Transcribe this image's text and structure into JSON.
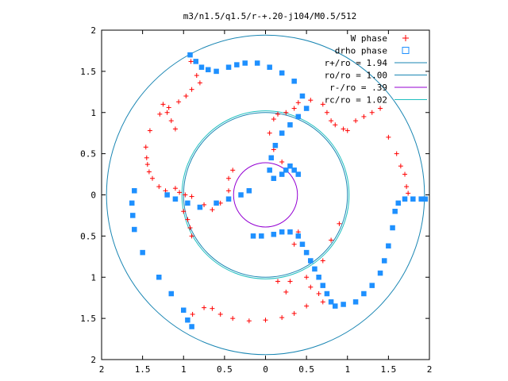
{
  "chart_data": {
    "type": "scatter",
    "title": "m3/n1.5/q1.5/r-+.20-j104/M0.5/512",
    "xlim": [
      -2,
      2
    ],
    "ylim": [
      -2,
      2
    ],
    "x_ticks": [
      -2,
      -1.5,
      -1,
      -0.5,
      0,
      0.5,
      1,
      1.5,
      2
    ],
    "y_ticks": [
      -2,
      -1.5,
      -1,
      -0.5,
      0,
      0.5,
      1,
      1.5,
      2
    ],
    "x_tick_labels": [
      "2",
      "1.5",
      "1",
      "0.5",
      "0",
      "0.5",
      "1",
      "1.5",
      "2"
    ],
    "y_tick_labels": [
      "2",
      "1.5",
      "1",
      "0.5",
      "0",
      "0.5",
      "1",
      "1.5",
      "2"
    ],
    "grid": false,
    "legend_position": "top-right",
    "circles": [
      {
        "label": "r+/ro = 1.94",
        "radius": 1.94,
        "color": "#1a86b3"
      },
      {
        "label": "ro/ro = 1.00",
        "radius": 1.0,
        "color": "#1a86b3"
      },
      {
        "label": "r-/ro =  .39",
        "radius": 0.39,
        "color": "#9400d3"
      },
      {
        "label": "rc/ro = 1.02",
        "radius": 1.02,
        "color": "#20c0c0"
      }
    ],
    "series": [
      {
        "name": "W phase",
        "marker": "plus",
        "color": "#ff0000",
        "points": [
          [
            -0.91,
            1.62
          ],
          [
            -0.84,
            1.45
          ],
          [
            -0.8,
            1.36
          ],
          [
            -0.9,
            1.28
          ],
          [
            -0.97,
            1.2
          ],
          [
            -1.06,
            1.13
          ],
          [
            -1.18,
            1.06
          ],
          [
            -1.29,
            0.98
          ],
          [
            -1.41,
            0.78
          ],
          [
            -1.46,
            0.58
          ],
          [
            -1.45,
            0.45
          ],
          [
            -1.44,
            0.37
          ],
          [
            -1.42,
            0.28
          ],
          [
            -1.38,
            0.2
          ],
          [
            -1.3,
            0.1
          ],
          [
            -1.22,
            0.05
          ],
          [
            -1.1,
            0.08
          ],
          [
            -1.05,
            0.03
          ],
          [
            -0.98,
            0.0
          ],
          [
            -0.9,
            -0.02
          ],
          [
            -0.75,
            -0.12
          ],
          [
            -0.65,
            -0.18
          ],
          [
            -0.55,
            -0.1
          ],
          [
            -0.45,
            0.05
          ],
          [
            -0.4,
            0.3
          ],
          [
            -0.45,
            0.2
          ],
          [
            -1.0,
            -0.2
          ],
          [
            -0.95,
            -0.3
          ],
          [
            -0.92,
            -0.4
          ],
          [
            -0.9,
            -0.5
          ],
          [
            -0.89,
            -1.45
          ],
          [
            -0.75,
            -1.37
          ],
          [
            -0.65,
            -1.38
          ],
          [
            -0.55,
            -1.45
          ],
          [
            -0.4,
            -1.5
          ],
          [
            -0.2,
            -1.53
          ],
          [
            0.0,
            -1.52
          ],
          [
            0.2,
            -1.49
          ],
          [
            0.35,
            -1.44
          ],
          [
            0.5,
            -1.35
          ],
          [
            0.25,
            -1.18
          ],
          [
            0.5,
            -1.0
          ],
          [
            0.6,
            -0.9
          ],
          [
            0.7,
            -0.8
          ],
          [
            0.35,
            -0.6
          ],
          [
            0.4,
            -0.45
          ],
          [
            0.8,
            -0.55
          ],
          [
            0.9,
            -0.35
          ],
          [
            0.15,
            -1.05
          ],
          [
            0.3,
            -1.05
          ],
          [
            0.55,
            -1.12
          ],
          [
            0.65,
            -1.2
          ],
          [
            0.7,
            -1.3
          ],
          [
            0.2,
            0.4
          ],
          [
            0.1,
            0.55
          ],
          [
            0.05,
            0.75
          ],
          [
            0.1,
            0.92
          ],
          [
            0.15,
            0.98
          ],
          [
            0.25,
            1.0
          ],
          [
            0.35,
            1.05
          ],
          [
            0.4,
            1.12
          ],
          [
            0.55,
            1.15
          ],
          [
            0.7,
            1.1
          ],
          [
            0.75,
            1.0
          ],
          [
            0.8,
            0.9
          ],
          [
            0.85,
            0.85
          ],
          [
            0.95,
            0.8
          ],
          [
            1.0,
            0.78
          ],
          [
            1.1,
            0.9
          ],
          [
            1.2,
            0.95
          ],
          [
            1.3,
            1.0
          ],
          [
            1.4,
            1.05
          ],
          [
            1.5,
            0.7
          ],
          [
            1.6,
            0.5
          ],
          [
            1.65,
            0.35
          ],
          [
            1.7,
            0.25
          ],
          [
            1.72,
            0.1
          ],
          [
            1.74,
            0.02
          ],
          [
            -1.25,
            1.1
          ],
          [
            -1.2,
            1.0
          ],
          [
            -1.15,
            0.9
          ],
          [
            -1.1,
            0.8
          ]
        ]
      },
      {
        "name": "drho phase",
        "marker": "square",
        "color": "#1e90ff",
        "points": [
          [
            -0.92,
            1.7
          ],
          [
            -0.85,
            1.62
          ],
          [
            -0.78,
            1.55
          ],
          [
            -0.7,
            1.52
          ],
          [
            -0.6,
            1.5
          ],
          [
            -0.45,
            1.55
          ],
          [
            -0.35,
            1.58
          ],
          [
            -0.25,
            1.6
          ],
          [
            -0.1,
            1.6
          ],
          [
            0.05,
            1.55
          ],
          [
            0.2,
            1.48
          ],
          [
            0.35,
            1.38
          ],
          [
            0.45,
            1.2
          ],
          [
            0.5,
            1.05
          ],
          [
            0.4,
            0.95
          ],
          [
            0.3,
            0.85
          ],
          [
            0.2,
            0.75
          ],
          [
            0.12,
            0.6
          ],
          [
            0.07,
            0.45
          ],
          [
            0.05,
            0.3
          ],
          [
            0.1,
            0.2
          ],
          [
            0.2,
            0.25
          ],
          [
            0.25,
            0.3
          ],
          [
            0.3,
            0.35
          ],
          [
            0.35,
            0.3
          ],
          [
            0.4,
            0.25
          ],
          [
            -1.6,
            0.05
          ],
          [
            -1.63,
            -0.1
          ],
          [
            -1.62,
            -0.25
          ],
          [
            -1.6,
            -0.42
          ],
          [
            -1.5,
            -0.7
          ],
          [
            -1.3,
            -1.0
          ],
          [
            -1.15,
            -1.2
          ],
          [
            -1.0,
            -1.4
          ],
          [
            -0.95,
            -1.52
          ],
          [
            -0.9,
            -1.6
          ],
          [
            -1.2,
            0.0
          ],
          [
            -1.1,
            -0.05
          ],
          [
            -0.95,
            -0.1
          ],
          [
            -0.8,
            -0.15
          ],
          [
            -0.6,
            -0.1
          ],
          [
            -0.45,
            -0.05
          ],
          [
            -0.3,
            0.0
          ],
          [
            -0.2,
            0.05
          ],
          [
            -0.15,
            -0.5
          ],
          [
            -0.05,
            -0.5
          ],
          [
            0.1,
            -0.48
          ],
          [
            0.2,
            -0.45
          ],
          [
            0.3,
            -0.45
          ],
          [
            0.4,
            -0.5
          ],
          [
            0.45,
            -0.6
          ],
          [
            0.5,
            -0.7
          ],
          [
            0.55,
            -0.8
          ],
          [
            0.6,
            -0.9
          ],
          [
            0.65,
            -1.0
          ],
          [
            0.7,
            -1.1
          ],
          [
            0.75,
            -1.2
          ],
          [
            0.8,
            -1.3
          ],
          [
            0.85,
            -1.35
          ],
          [
            0.95,
            -1.33
          ],
          [
            1.1,
            -1.3
          ],
          [
            1.2,
            -1.2
          ],
          [
            1.3,
            -1.1
          ],
          [
            1.4,
            -0.95
          ],
          [
            1.45,
            -0.8
          ],
          [
            1.5,
            -0.62
          ],
          [
            1.55,
            -0.4
          ],
          [
            1.58,
            -0.2
          ],
          [
            1.62,
            -0.1
          ],
          [
            1.7,
            -0.05
          ],
          [
            1.8,
            -0.05
          ],
          [
            1.9,
            -0.05
          ],
          [
            1.95,
            -0.05
          ]
        ]
      }
    ]
  }
}
